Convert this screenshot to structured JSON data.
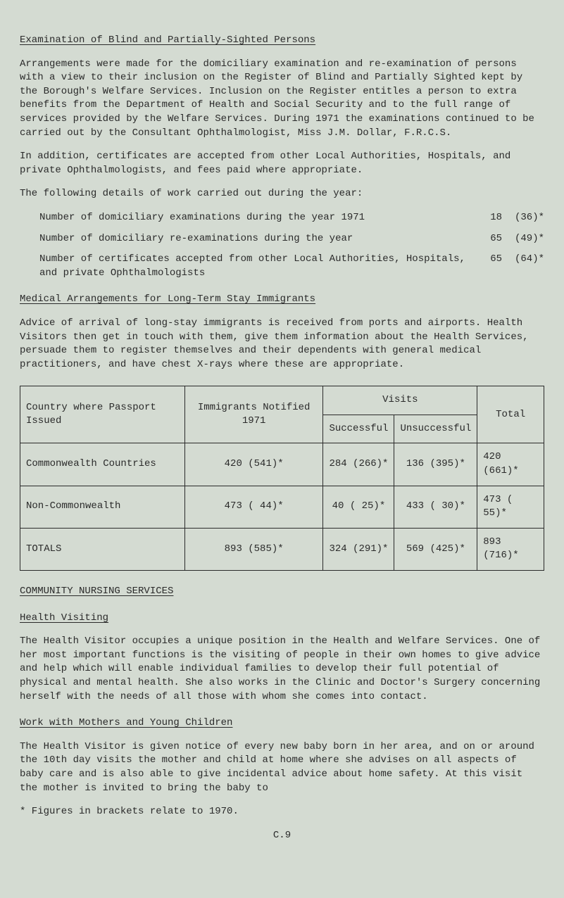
{
  "section1": {
    "title": "Examination of Blind and Partially-Sighted Persons",
    "para1": "Arrangements were made for the domiciliary examination and re-examination of persons with a view to their inclusion on the Register of Blind and Partially Sighted kept by the Borough's Welfare Services. Inclusion on the Register entitles a person to extra benefits from the Department of Health and Social Security and to the full range of services provided by the Welfare Services. During 1971 the examinations continued to be carried out by the Consultant Ophthalmologist, Miss J.M. Dollar, F.R.C.S.",
    "para2": "In addition, certificates are accepted from other Local Authorities, Hospitals, and private Ophthalmologists, and fees paid where appropriate.",
    "para3": "The following details of work carried out during the year:",
    "stats": [
      {
        "label": "Number of domiciliary examinations during the year  1971",
        "v1": "18",
        "v2": "(36)*"
      },
      {
        "label": "Number of domiciliary re-examinations during the year",
        "v1": "65",
        "v2": "(49)*"
      },
      {
        "label": "Number of certificates accepted from other Local Authorities, Hospitals, and private Ophthalmologists",
        "v1": "65",
        "v2": "(64)*"
      }
    ]
  },
  "section2": {
    "title": "Medical Arrangements for Long-Term Stay Immigrants",
    "para1": "Advice of arrival of long-stay immigrants is received from ports and airports. Health Visitors then get in touch with them, give them information about the Health Services, persuade them to register themselves and their dependents with general medical practitioners, and have chest X-rays where these are appropriate."
  },
  "table": {
    "headers": {
      "country": "Country where Passport Issued",
      "immigrants": "Immigrants Notified 1971",
      "visits": "Visits",
      "successful": "Successful",
      "unsuccessful": "Unsuccessful",
      "total": "Total"
    },
    "rows": [
      {
        "country": "Commonwealth Countries",
        "immigrants": "420 (541)*",
        "successful": "284 (266)*",
        "unsuccessful": "136  (395)*",
        "total": "420 (661)*"
      },
      {
        "country": "Non-Commonwealth",
        "immigrants": "473 ( 44)*",
        "successful": "40 ( 25)*",
        "unsuccessful": "433  ( 30)*",
        "total": "473 ( 55)*"
      },
      {
        "country": "TOTALS",
        "immigrants": "893 (585)*",
        "successful": "324 (291)*",
        "unsuccessful": "569  (425)*",
        "total": "893 (716)*"
      }
    ]
  },
  "section3": {
    "title": "COMMUNITY NURSING SERVICES"
  },
  "section4": {
    "title": "Health Visiting",
    "para1": "The Health Visitor occupies a unique position in the Health and Welfare Services. One of her most important functions is the visiting of people in their own homes to give advice and help which will enable individual families to develop their full potential of physical and mental health. She also works in the Clinic and Doctor's Surgery concerning herself with the needs of all those with whom she comes into contact."
  },
  "section5": {
    "title": "Work with Mothers and Young Children",
    "para1": "The Health Visitor is given notice of every new baby born in her area, and on or around the 10th day visits the mother and child at home where she advises on all aspects of baby care and is also able to give incidental advice about home safety. At this visit the mother is invited to bring the baby to"
  },
  "footnote": "* Figures in brackets relate to 1970.",
  "pagenum": "C.9"
}
